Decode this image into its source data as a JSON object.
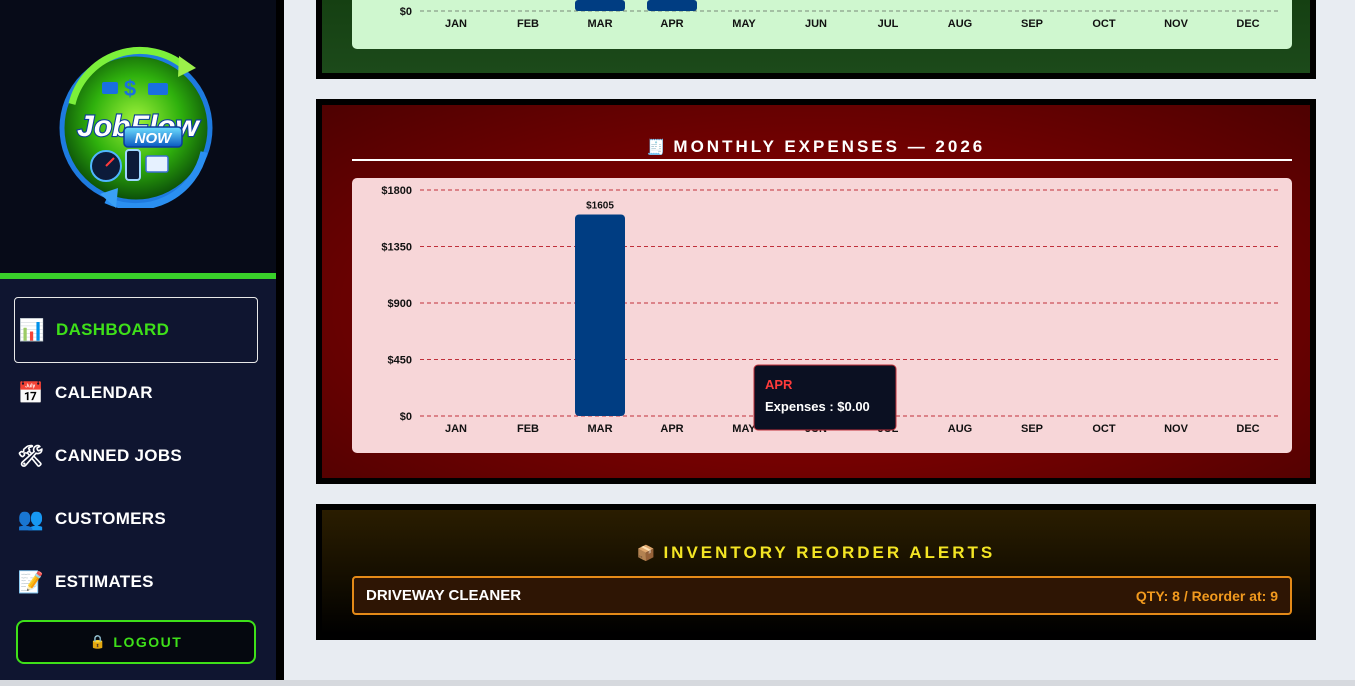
{
  "sidebar": {
    "logo": {
      "line1": "JobFlow",
      "line2": "NOW"
    },
    "nav": [
      {
        "icon": "bar-chart-icon",
        "glyph": "📊",
        "label": "DASHBOARD",
        "active": true
      },
      {
        "icon": "calendar-icon",
        "glyph": "📅",
        "label": "CALENDAR",
        "active": false
      },
      {
        "icon": "tools-icon",
        "glyph": "🛠",
        "label": "CANNED JOBS",
        "active": false
      },
      {
        "icon": "people-icon",
        "glyph": "👥",
        "label": "CUSTOMERS",
        "active": false
      },
      {
        "icon": "memo-icon",
        "glyph": "📝",
        "label": "ESTIMATES",
        "active": false
      }
    ],
    "logout": {
      "icon": "lock-icon",
      "glyph": "🔒",
      "label": "LOGOUT"
    }
  },
  "colors": {
    "accent_green": "#3ee019",
    "bar_blue": "#003d82",
    "expense_red": "#7a0101",
    "inventory_yellow": "#f4e524",
    "alert_orange": "#e48a18"
  },
  "income_chart_partial": {
    "y_label_visible": "$0",
    "months": [
      "JAN",
      "FEB",
      "MAR",
      "APR",
      "MAY",
      "JUN",
      "JUL",
      "AUG",
      "SEP",
      "OCT",
      "NOV",
      "DEC"
    ]
  },
  "expenses": {
    "title_icon": "receipt-icon",
    "title_glyph": "🧾",
    "title": "MONTHLY EXPENSES — 2026",
    "tooltip": {
      "month": "APR",
      "text": "Expenses : $0.00"
    }
  },
  "inventory": {
    "title_icon": "package-icon",
    "title_glyph": "📦",
    "title": "INVENTORY REORDER ALERTS",
    "alerts": [
      {
        "name": "DRIVEWAY CLEANER",
        "qty_text": "QTY: 8 / Reorder at: 9"
      }
    ]
  },
  "chart_data": [
    {
      "type": "bar",
      "title": "",
      "categories": [
        "JAN",
        "FEB",
        "MAR",
        "APR",
        "MAY",
        "JUN",
        "JUL",
        "AUG",
        "SEP",
        "OCT",
        "NOV",
        "DEC"
      ],
      "yticks": [
        "$0"
      ],
      "note": "partially visible chart above; MAR and APR bars extend above view",
      "series": [
        {
          "values": [
            0,
            0,
            null,
            null,
            0,
            0,
            0,
            0,
            0,
            0,
            0,
            0
          ]
        }
      ],
      "grid": true
    },
    {
      "type": "bar",
      "title": "MONTHLY EXPENSES — 2026",
      "categories": [
        "JAN",
        "FEB",
        "MAR",
        "APR",
        "MAY",
        "JUN",
        "JUL",
        "AUG",
        "SEP",
        "OCT",
        "NOV",
        "DEC"
      ],
      "values": [
        0,
        0,
        1605,
        0,
        0,
        0,
        0,
        0,
        0,
        0,
        0,
        0
      ],
      "data_labels": [
        "",
        "",
        "$1605",
        "",
        "",
        "",
        "",
        "",
        "",
        "",
        "",
        ""
      ],
      "yticks": [
        "$0",
        "$450",
        "$900",
        "$1350",
        "$1800"
      ],
      "ylim": [
        0,
        1800
      ],
      "grid": true,
      "legend": "none"
    }
  ]
}
